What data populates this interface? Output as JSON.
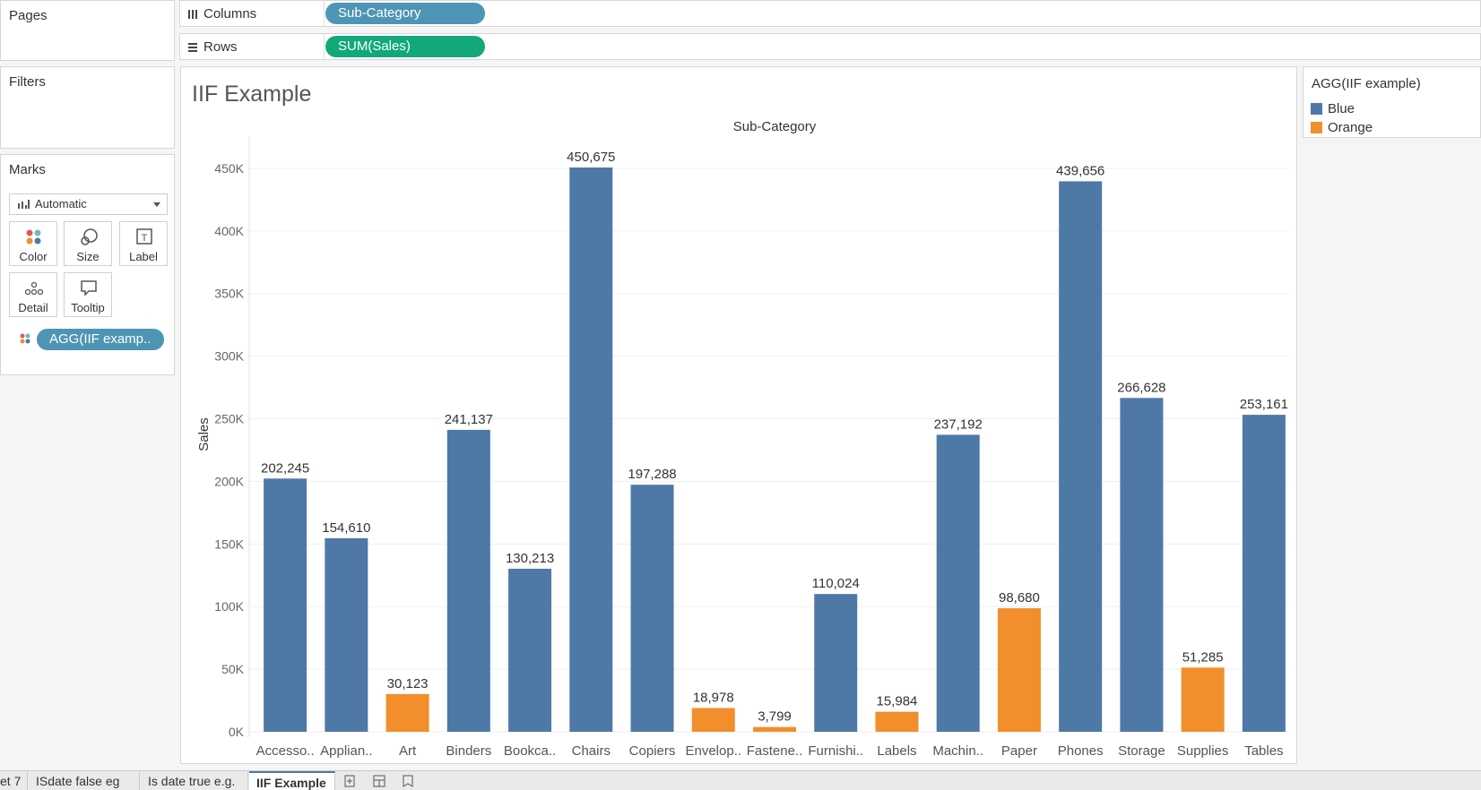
{
  "shelves": {
    "pages_label": "Pages",
    "columns_label": "Columns",
    "columns_pill": "Sub-Category",
    "rows_label": "Rows",
    "rows_pill": "SUM(Sales)"
  },
  "filters": {
    "title": "Filters"
  },
  "marks": {
    "title": "Marks",
    "mark_type": "Automatic",
    "buttons": {
      "color": "Color",
      "size": "Size",
      "label": "Label",
      "detail": "Detail",
      "tooltip": "Tooltip"
    },
    "color_pill": "AGG(IIF examp.."
  },
  "legend": {
    "title": "AGG(IIF example)",
    "items": [
      {
        "label": "Blue",
        "color": "#4e79a7"
      },
      {
        "label": "Orange",
        "color": "#f28e2b"
      }
    ]
  },
  "sheet": {
    "title": "IIF Example"
  },
  "chart_data": {
    "type": "bar",
    "title": "IIF Example",
    "xlabel": "Sub-Category",
    "ylabel": "Sales",
    "ylim": [
      0,
      475000
    ],
    "yticks": [
      0,
      50000,
      100000,
      150000,
      200000,
      250000,
      300000,
      350000,
      400000,
      450000
    ],
    "ytick_labels": [
      "0K",
      "50K",
      "100K",
      "150K",
      "200K",
      "250K",
      "300K",
      "350K",
      "400K",
      "450K"
    ],
    "grid": true,
    "categories": [
      "Accesso..",
      "Applian..",
      "Art",
      "Binders",
      "Bookca..",
      "Chairs",
      "Copiers",
      "Envelop..",
      "Fastene..",
      "Furnishi..",
      "Labels",
      "Machin..",
      "Paper",
      "Phones",
      "Storage",
      "Supplies",
      "Tables"
    ],
    "values": [
      202245,
      154610,
      30123,
      241137,
      130213,
      450675,
      197288,
      18978,
      3799,
      110024,
      15984,
      237192,
      98680,
      439656,
      266628,
      51285,
      253161
    ],
    "value_labels": [
      "202,245",
      "154,610",
      "30,123",
      "241,137",
      "130,213",
      "450,675",
      "197,288",
      "18,978",
      "3,799",
      "110,024",
      "15,984",
      "237,192",
      "98,680",
      "439,656",
      "266,628",
      "51,285",
      "253,161"
    ],
    "color_group": [
      "Blue",
      "Blue",
      "Orange",
      "Blue",
      "Blue",
      "Blue",
      "Blue",
      "Orange",
      "Orange",
      "Blue",
      "Orange",
      "Blue",
      "Orange",
      "Blue",
      "Blue",
      "Orange",
      "Blue"
    ],
    "colors": {
      "Blue": "#4e79a7",
      "Orange": "#f28e2b"
    },
    "legend_position": "right"
  },
  "tabs": [
    "et 7",
    "ISdate false eg",
    "Is date true e.g.",
    "IIF Example"
  ],
  "active_tab": "IIF Example",
  "tab_icons": [
    "new-worksheet-icon",
    "new-dashboard-icon",
    "new-story-icon"
  ]
}
